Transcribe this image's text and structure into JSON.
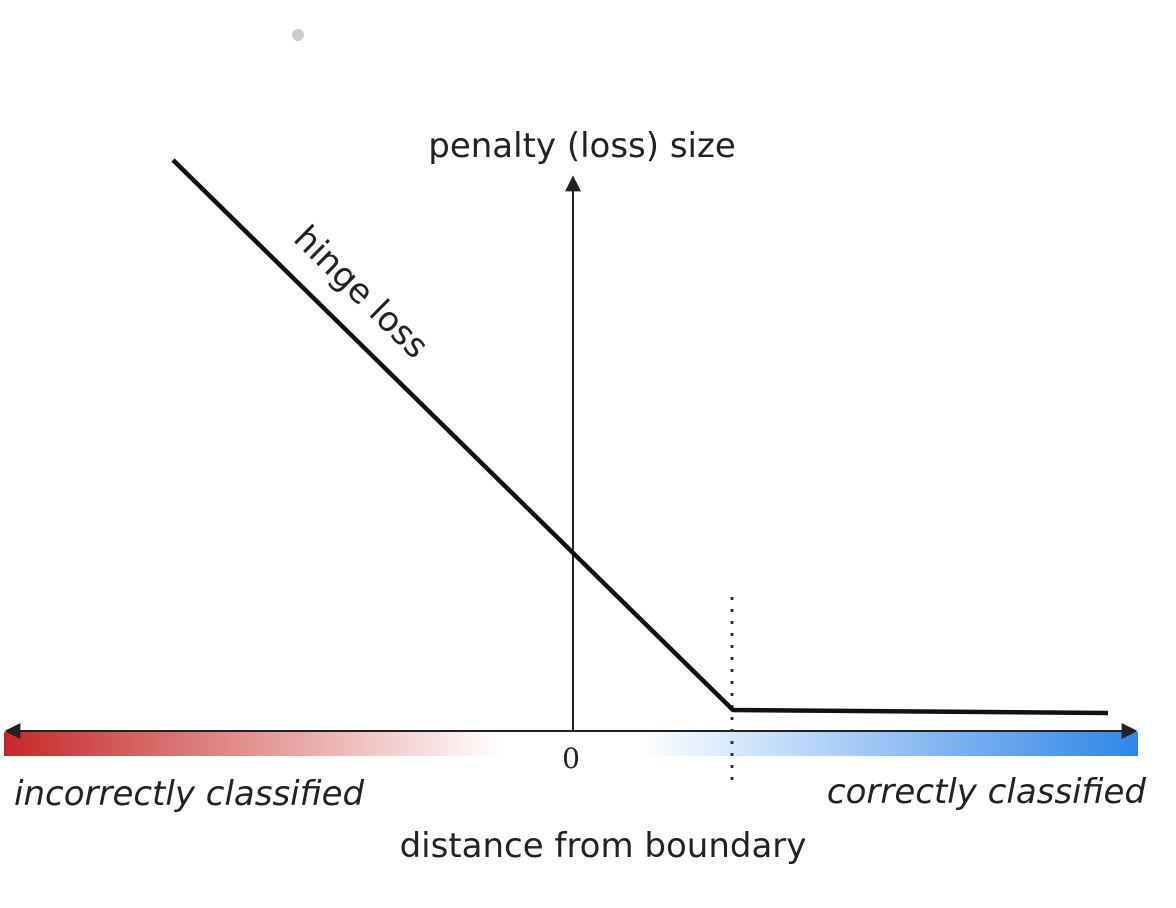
{
  "diagram": {
    "y_axis_label": "penalty (loss) size",
    "x_axis_label": "distance from boundary",
    "origin_tick": "0",
    "curve_label": "hinge loss",
    "left_region_label": "incorrectly classified",
    "right_region_label": "correctly classified",
    "colors": {
      "curve": "#111111",
      "axis": "#222222",
      "incorrect_gradient_start": "#c62828",
      "correct_gradient_end": "#2f86e8",
      "neutral": "#ffffff",
      "dot": "#cccccc"
    }
  }
}
